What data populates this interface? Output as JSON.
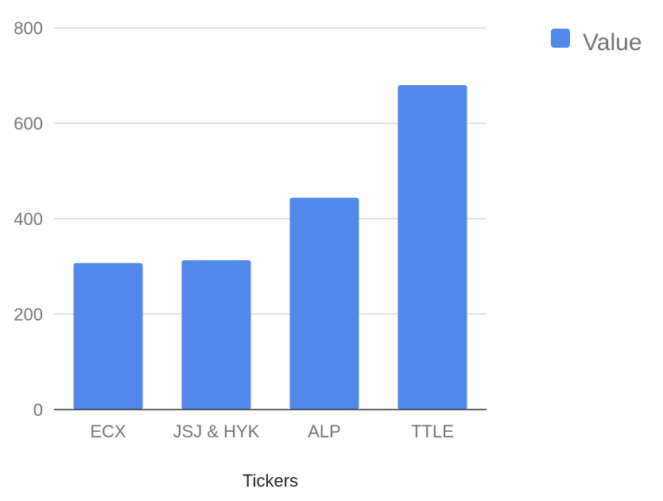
{
  "chart_data": {
    "type": "bar",
    "categories": [
      "ECX",
      "JSJ & HYK",
      "ALP",
      "TTLE"
    ],
    "series": [
      {
        "name": "Value",
        "values": [
          307,
          313,
          444,
          680
        ]
      }
    ],
    "title": "",
    "xlabel": "Tickers",
    "ylabel": "",
    "ylim": [
      0,
      800
    ],
    "yticks": [
      "0",
      "200",
      "400",
      "600",
      "800"
    ],
    "grid": true,
    "legend_position": "top-right",
    "colors": {
      "bar": "#5288EA",
      "gridline": "#D9D9D9",
      "baseline": "#333333"
    }
  }
}
